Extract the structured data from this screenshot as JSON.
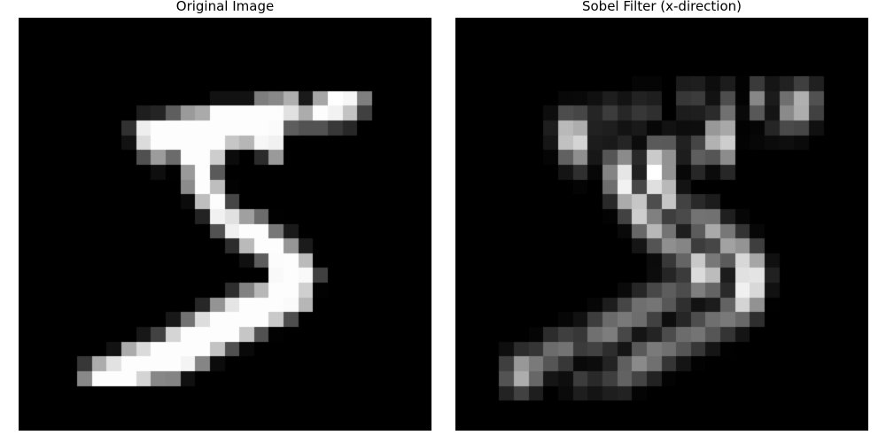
{
  "panels": [
    {
      "title": "Original Image"
    },
    {
      "title": "Sobel Filter (x-direction)"
    }
  ],
  "image": {
    "grid_size": 28,
    "rows": [
      [
        0,
        0,
        0,
        0,
        0,
        0,
        0,
        0,
        0,
        0,
        0,
        0,
        0,
        0,
        0,
        0,
        0,
        0,
        0,
        0,
        0,
        0,
        0,
        0,
        0,
        0,
        0,
        0
      ],
      [
        0,
        0,
        0,
        0,
        0,
        0,
        0,
        0,
        0,
        0,
        0,
        0,
        0,
        0,
        0,
        0,
        0,
        0,
        0,
        0,
        0,
        0,
        0,
        0,
        0,
        0,
        0,
        0
      ],
      [
        0,
        0,
        0,
        0,
        0,
        0,
        0,
        0,
        0,
        0,
        0,
        0,
        0,
        0,
        0,
        0,
        0,
        0,
        0,
        0,
        0,
        0,
        0,
        0,
        0,
        0,
        0,
        0
      ],
      [
        0,
        0,
        0,
        0,
        0,
        0,
        0,
        0,
        0,
        0,
        0,
        0,
        0,
        0,
        0,
        0,
        0,
        0,
        0,
        0,
        0,
        0,
        0,
        0,
        0,
        0,
        0,
        0
      ],
      [
        0,
        0,
        0,
        0,
        0,
        0,
        0,
        0,
        0,
        0,
        0,
        0,
        0,
        0,
        0,
        0,
        0,
        0,
        0,
        0,
        0,
        0,
        0,
        0,
        0,
        0,
        0,
        0
      ],
      [
        0,
        0,
        0,
        0,
        0,
        0,
        0,
        0,
        0,
        0,
        0,
        0,
        0,
        18,
        18,
        18,
        126,
        136,
        175,
        26,
        166,
        255,
        247,
        127,
        0,
        0,
        0,
        0
      ],
      [
        0,
        0,
        0,
        0,
        0,
        0,
        0,
        0,
        30,
        36,
        94,
        154,
        170,
        253,
        253,
        253,
        253,
        253,
        225,
        172,
        253,
        242,
        195,
        64,
        0,
        0,
        0,
        0
      ],
      [
        0,
        0,
        0,
        0,
        0,
        0,
        0,
        49,
        238,
        253,
        253,
        253,
        253,
        253,
        253,
        253,
        253,
        251,
        93,
        82,
        82,
        56,
        39,
        0,
        0,
        0,
        0,
        0
      ],
      [
        0,
        0,
        0,
        0,
        0,
        0,
        0,
        18,
        219,
        253,
        253,
        253,
        253,
        253,
        198,
        182,
        247,
        241,
        0,
        0,
        0,
        0,
        0,
        0,
        0,
        0,
        0,
        0
      ],
      [
        0,
        0,
        0,
        0,
        0,
        0,
        0,
        0,
        80,
        156,
        107,
        253,
        253,
        205,
        11,
        0,
        43,
        154,
        0,
        0,
        0,
        0,
        0,
        0,
        0,
        0,
        0,
        0
      ],
      [
        0,
        0,
        0,
        0,
        0,
        0,
        0,
        0,
        0,
        14,
        1,
        154,
        253,
        90,
        0,
        0,
        0,
        0,
        0,
        0,
        0,
        0,
        0,
        0,
        0,
        0,
        0,
        0
      ],
      [
        0,
        0,
        0,
        0,
        0,
        0,
        0,
        0,
        0,
        0,
        0,
        139,
        253,
        190,
        2,
        0,
        0,
        0,
        0,
        0,
        0,
        0,
        0,
        0,
        0,
        0,
        0,
        0
      ],
      [
        0,
        0,
        0,
        0,
        0,
        0,
        0,
        0,
        0,
        0,
        0,
        11,
        190,
        253,
        70,
        0,
        0,
        0,
        0,
        0,
        0,
        0,
        0,
        0,
        0,
        0,
        0,
        0
      ],
      [
        0,
        0,
        0,
        0,
        0,
        0,
        0,
        0,
        0,
        0,
        0,
        0,
        35,
        241,
        225,
        160,
        108,
        1,
        0,
        0,
        0,
        0,
        0,
        0,
        0,
        0,
        0,
        0
      ],
      [
        0,
        0,
        0,
        0,
        0,
        0,
        0,
        0,
        0,
        0,
        0,
        0,
        0,
        81,
        240,
        253,
        253,
        119,
        25,
        0,
        0,
        0,
        0,
        0,
        0,
        0,
        0,
        0
      ],
      [
        0,
        0,
        0,
        0,
        0,
        0,
        0,
        0,
        0,
        0,
        0,
        0,
        0,
        0,
        45,
        186,
        253,
        253,
        150,
        27,
        0,
        0,
        0,
        0,
        0,
        0,
        0,
        0
      ],
      [
        0,
        0,
        0,
        0,
        0,
        0,
        0,
        0,
        0,
        0,
        0,
        0,
        0,
        0,
        0,
        16,
        93,
        252,
        253,
        187,
        0,
        0,
        0,
        0,
        0,
        0,
        0,
        0
      ],
      [
        0,
        0,
        0,
        0,
        0,
        0,
        0,
        0,
        0,
        0,
        0,
        0,
        0,
        0,
        0,
        0,
        0,
        249,
        253,
        249,
        64,
        0,
        0,
        0,
        0,
        0,
        0,
        0
      ],
      [
        0,
        0,
        0,
        0,
        0,
        0,
        0,
        0,
        0,
        0,
        0,
        0,
        0,
        0,
        46,
        130,
        183,
        253,
        253,
        207,
        2,
        0,
        0,
        0,
        0,
        0,
        0,
        0
      ],
      [
        0,
        0,
        0,
        0,
        0,
        0,
        0,
        0,
        0,
        0,
        0,
        0,
        39,
        148,
        229,
        253,
        253,
        253,
        250,
        182,
        0,
        0,
        0,
        0,
        0,
        0,
        0,
        0
      ],
      [
        0,
        0,
        0,
        0,
        0,
        0,
        0,
        0,
        0,
        0,
        24,
        114,
        221,
        253,
        253,
        253,
        253,
        201,
        78,
        0,
        0,
        0,
        0,
        0,
        0,
        0,
        0,
        0
      ],
      [
        0,
        0,
        0,
        0,
        0,
        0,
        0,
        0,
        23,
        66,
        213,
        253,
        253,
        253,
        253,
        198,
        81,
        2,
        0,
        0,
        0,
        0,
        0,
        0,
        0,
        0,
        0,
        0
      ],
      [
        0,
        0,
        0,
        0,
        0,
        0,
        18,
        171,
        219,
        253,
        253,
        253,
        253,
        195,
        80,
        9,
        0,
        0,
        0,
        0,
        0,
        0,
        0,
        0,
        0,
        0,
        0,
        0
      ],
      [
        0,
        0,
        0,
        0,
        55,
        172,
        226,
        253,
        253,
        253,
        253,
        244,
        133,
        11,
        0,
        0,
        0,
        0,
        0,
        0,
        0,
        0,
        0,
        0,
        0,
        0,
        0,
        0
      ],
      [
        0,
        0,
        0,
        0,
        136,
        253,
        253,
        253,
        212,
        135,
        132,
        16,
        0,
        0,
        0,
        0,
        0,
        0,
        0,
        0,
        0,
        0,
        0,
        0,
        0,
        0,
        0,
        0
      ],
      [
        0,
        0,
        0,
        0,
        0,
        0,
        0,
        0,
        0,
        0,
        0,
        0,
        0,
        0,
        0,
        0,
        0,
        0,
        0,
        0,
        0,
        0,
        0,
        0,
        0,
        0,
        0,
        0
      ],
      [
        0,
        0,
        0,
        0,
        0,
        0,
        0,
        0,
        0,
        0,
        0,
        0,
        0,
        0,
        0,
        0,
        0,
        0,
        0,
        0,
        0,
        0,
        0,
        0,
        0,
        0,
        0,
        0
      ],
      [
        0,
        0,
        0,
        0,
        0,
        0,
        0,
        0,
        0,
        0,
        0,
        0,
        0,
        0,
        0,
        0,
        0,
        0,
        0,
        0,
        0,
        0,
        0,
        0,
        0,
        0,
        0,
        0
      ]
    ]
  }
}
